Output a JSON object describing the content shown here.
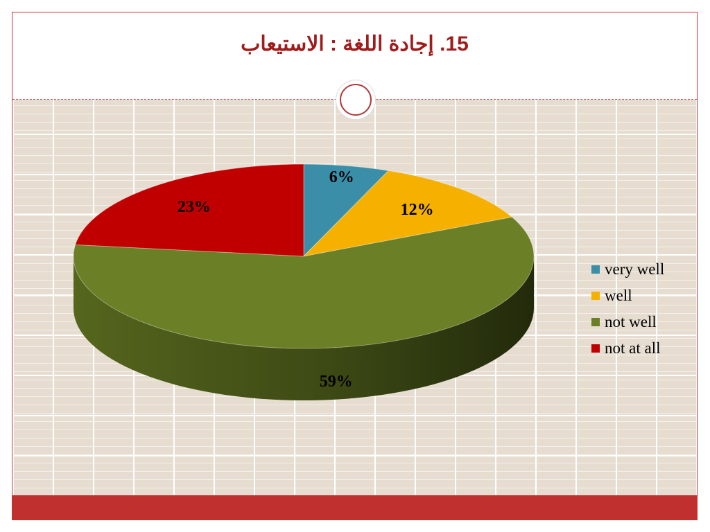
{
  "slide": {
    "title": "15. إجادة اللغة : الاستيعاب"
  },
  "chart_data": {
    "type": "pie",
    "title": "",
    "categories": [
      "very well",
      "well",
      "not well",
      "not at all"
    ],
    "values": [
      6,
      12,
      59,
      23
    ],
    "labels": [
      "6%",
      "12%",
      "59%",
      "23%"
    ],
    "colors": [
      "#3a8ea8",
      "#f5b000",
      "#6a7f26",
      "#c00000"
    ],
    "legend": {
      "placement": "right",
      "items": [
        "very well",
        "well",
        "not well",
        "not at all"
      ]
    }
  }
}
